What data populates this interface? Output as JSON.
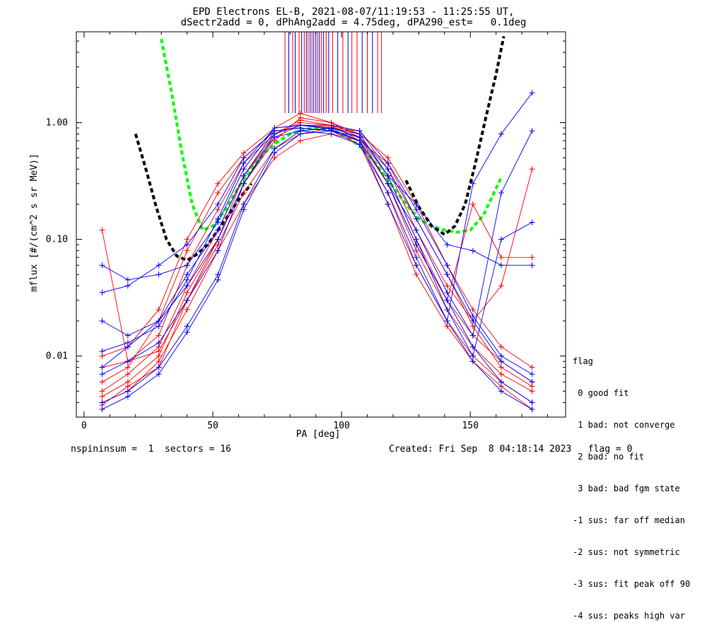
{
  "title_line1": "EPD Electrons EL-B, 2021-08-07/11:19:53 - 11:25:55 UT,",
  "title_line2": "dSectr2add = 0, dPhAng2add = 4.75deg, dPA290_est=   0.1deg",
  "footer_left": "nspininsum =  1  sectors = 16",
  "footer_right": "Created: Fri Sep  8 04:18:14 2023   flag = 0",
  "flag_legend": {
    "title": "flag",
    "items": [
      " 0 good fit",
      " 1 bad: not converge",
      " 2 bad: no fit",
      " 3 bad: bad fgm state",
      "-1 sus: far off median",
      "-2 sus: not symmetric",
      "-3 sus: fit peak off 90",
      "-4 sus: peaks high var"
    ]
  },
  "chart_data": {
    "type": "line",
    "xlabel": "PA [deg]",
    "ylabel": "mflux [#/(cm^2 s sr MeV)]",
    "xlim": [
      -3,
      187
    ],
    "ylim": [
      0.003,
      6.0
    ],
    "yscale": "log",
    "xticks": [
      0,
      50,
      100,
      150
    ],
    "yticks": [
      {
        "v": 0.01,
        "label": "0.01"
      },
      {
        "v": 0.1,
        "label": "0.10"
      },
      {
        "v": 1.0,
        "label": "1.00"
      }
    ],
    "pa_bins": [
      7,
      17,
      29,
      40,
      52,
      62,
      74,
      84,
      96,
      107,
      118,
      129,
      141,
      151,
      162,
      174
    ],
    "colors": {
      "red": "#ff0000",
      "blue": "#0000ff",
      "green": "#00ff00",
      "black": "#000000"
    },
    "series": [
      {
        "color": "red",
        "values": [
          0.005,
          0.007,
          0.012,
          0.04,
          0.12,
          0.35,
          0.75,
          0.95,
          0.92,
          0.75,
          0.3,
          0.08,
          0.025,
          0.012,
          0.007,
          0.005
        ]
      },
      {
        "color": "red",
        "values": [
          0.008,
          0.009,
          0.015,
          0.06,
          0.18,
          0.45,
          0.8,
          1.05,
          0.95,
          0.7,
          0.25,
          0.06,
          0.02,
          0.01,
          0.006,
          0.004
        ]
      },
      {
        "color": "red",
        "values": [
          0.0045,
          0.006,
          0.01,
          0.035,
          0.1,
          0.3,
          0.7,
          1.1,
          1.0,
          0.8,
          0.35,
          0.1,
          0.03,
          0.015,
          0.009,
          0.006
        ]
      },
      {
        "color": "red",
        "values": [
          0.006,
          0.008,
          0.02,
          0.08,
          0.25,
          0.5,
          0.85,
          0.9,
          0.85,
          0.65,
          0.2,
          0.05,
          0.018,
          0.009,
          0.0055,
          0.0035
        ]
      },
      {
        "color": "red",
        "values": [
          0.12,
          0.009,
          0.011,
          0.03,
          0.09,
          0.25,
          0.6,
          0.8,
          0.9,
          0.85,
          0.4,
          0.12,
          0.04,
          0.02,
          0.04,
          0.4
        ]
      },
      {
        "color": "red",
        "values": [
          0.01,
          0.012,
          0.025,
          0.1,
          0.3,
          0.55,
          0.9,
          1.2,
          1.0,
          0.75,
          0.3,
          0.09,
          0.03,
          0.2,
          0.07,
          0.07
        ]
      },
      {
        "color": "red",
        "values": [
          0.004,
          0.005,
          0.009,
          0.025,
          0.08,
          0.2,
          0.5,
          0.7,
          0.8,
          0.7,
          0.45,
          0.15,
          0.05,
          0.018,
          0.008,
          0.0055
        ]
      },
      {
        "color": "red",
        "values": [
          0.0038,
          0.0055,
          0.008,
          0.03,
          0.1,
          0.35,
          0.8,
          1.0,
          0.95,
          0.8,
          0.5,
          0.2,
          0.06,
          0.025,
          0.012,
          0.008
        ]
      },
      {
        "color": "blue",
        "values": [
          0.06,
          0.045,
          0.05,
          0.06,
          0.14,
          0.4,
          0.9,
          0.95,
          0.9,
          0.8,
          0.35,
          0.2,
          0.09,
          0.08,
          0.06,
          0.06
        ]
      },
      {
        "color": "blue",
        "values": [
          0.008,
          0.012,
          0.02,
          0.05,
          0.12,
          0.35,
          0.85,
          0.9,
          0.85,
          0.7,
          0.3,
          0.09,
          0.03,
          0.012,
          0.006,
          0.004
        ]
      },
      {
        "color": "blue",
        "values": [
          0.004,
          0.005,
          0.008,
          0.018,
          0.05,
          0.2,
          0.6,
          0.85,
          0.9,
          0.75,
          0.4,
          0.15,
          0.05,
          0.02,
          0.009,
          0.006
        ]
      },
      {
        "color": "blue",
        "values": [
          0.007,
          0.009,
          0.013,
          0.03,
          0.08,
          0.3,
          0.75,
          0.85,
          0.8,
          0.65,
          0.25,
          0.07,
          0.02,
          0.009,
          0.005,
          0.0035
        ]
      },
      {
        "color": "blue",
        "values": [
          0.02,
          0.015,
          0.02,
          0.04,
          0.1,
          0.3,
          0.8,
          0.95,
          0.95,
          0.85,
          0.45,
          0.18,
          0.06,
          0.022,
          0.01,
          0.007
        ]
      },
      {
        "color": "blue",
        "values": [
          0.0035,
          0.0045,
          0.007,
          0.016,
          0.045,
          0.18,
          0.55,
          0.8,
          0.85,
          0.7,
          0.2,
          0.06,
          0.02,
          0.3,
          0.8,
          1.8
        ]
      },
      {
        "color": "blue",
        "values": [
          0.011,
          0.013,
          0.018,
          0.045,
          0.15,
          0.45,
          0.9,
          0.95,
          0.88,
          0.7,
          0.3,
          0.12,
          0.035,
          0.015,
          0.25,
          0.85
        ]
      },
      {
        "color": "blue",
        "values": [
          0.035,
          0.04,
          0.06,
          0.09,
          0.2,
          0.5,
          0.85,
          0.9,
          0.85,
          0.75,
          0.35,
          0.1,
          0.025,
          0.01,
          0.1,
          0.14
        ]
      }
    ],
    "fits": [
      {
        "color": "green",
        "x": [
          30,
          34,
          38,
          42,
          46,
          50,
          55,
          60,
          65,
          70,
          75,
          80,
          85,
          90,
          95,
          100,
          105,
          110,
          115,
          120,
          125,
          130,
          135,
          140,
          145,
          150,
          155,
          158,
          162
        ],
        "values": [
          5.2,
          1.8,
          0.55,
          0.2,
          0.12,
          0.13,
          0.18,
          0.28,
          0.4,
          0.55,
          0.68,
          0.8,
          0.87,
          0.9,
          0.88,
          0.8,
          0.68,
          0.55,
          0.4,
          0.28,
          0.2,
          0.15,
          0.13,
          0.12,
          0.115,
          0.12,
          0.16,
          0.22,
          0.34
        ]
      },
      {
        "color": "black",
        "x": [
          20,
          24,
          28,
          32,
          36,
          40,
          44,
          48,
          52,
          56,
          60,
          65
        ],
        "values": [
          0.8,
          0.4,
          0.19,
          0.1,
          0.072,
          0.066,
          0.075,
          0.09,
          0.12,
          0.16,
          0.22,
          0.3
        ]
      },
      {
        "color": "black",
        "x": [
          125,
          130,
          135,
          140,
          144,
          148,
          152,
          156,
          160,
          163
        ],
        "values": [
          0.32,
          0.19,
          0.13,
          0.11,
          0.13,
          0.2,
          0.45,
          1.1,
          2.6,
          5.5
        ]
      }
    ],
    "peak_markers": [
      {
        "x": 78.0,
        "color": "red"
      },
      {
        "x": 79.5,
        "color": "blue"
      },
      {
        "x": 81.0,
        "color": "red"
      },
      {
        "x": 82.0,
        "color": "blue"
      },
      {
        "x": 83.5,
        "color": "red"
      },
      {
        "x": 84.5,
        "color": "blue"
      },
      {
        "x": 85.5,
        "color": "red"
      },
      {
        "x": 86.3,
        "color": "blue"
      },
      {
        "x": 87.0,
        "color": "red"
      },
      {
        "x": 87.8,
        "color": "blue"
      },
      {
        "x": 88.5,
        "color": "red"
      },
      {
        "x": 89.2,
        "color": "blue"
      },
      {
        "x": 90.0,
        "color": "blue"
      },
      {
        "x": 90.7,
        "color": "red"
      },
      {
        "x": 91.4,
        "color": "blue"
      },
      {
        "x": 92.2,
        "color": "red"
      },
      {
        "x": 93.0,
        "color": "blue"
      },
      {
        "x": 94.0,
        "color": "red"
      },
      {
        "x": 95.0,
        "color": "blue"
      },
      {
        "x": 96.5,
        "color": "red"
      },
      {
        "x": 98.5,
        "color": "blue"
      },
      {
        "x": 100.5,
        "color": "red"
      },
      {
        "x": 102.5,
        "color": "blue"
      },
      {
        "x": 104.0,
        "color": "red"
      },
      {
        "x": 106.0,
        "color": "red"
      },
      {
        "x": 108.0,
        "color": "blue"
      },
      {
        "x": 110.0,
        "color": "red"
      },
      {
        "x": 112.0,
        "color": "blue"
      },
      {
        "x": 114.0,
        "color": "red"
      },
      {
        "x": 115.5,
        "color": "red"
      }
    ]
  }
}
